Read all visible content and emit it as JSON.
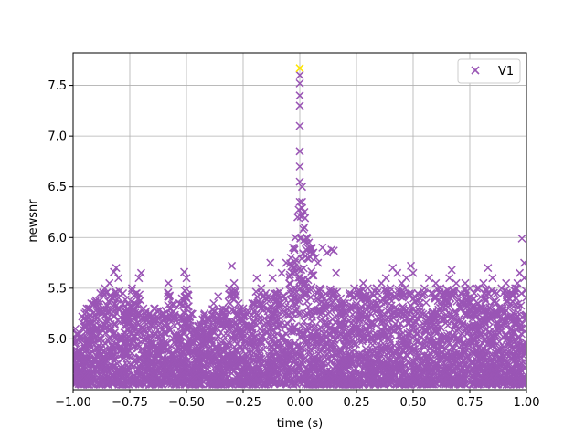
{
  "chart_data": {
    "type": "scatter",
    "title": "",
    "xlabel": "time (s)",
    "ylabel": "newsnr",
    "xlim": [
      -1.0,
      1.0
    ],
    "ylim": [
      4.5,
      7.82
    ],
    "grid": true,
    "legend_position": "top-right",
    "x_ticks": [
      "−1.00",
      "−0.75",
      "−0.50",
      "−0.25",
      "0.00",
      "0.25",
      "0.50",
      "0.75",
      "1.00"
    ],
    "x_tick_values": [
      -1.0,
      -0.75,
      -0.5,
      -0.25,
      0.0,
      0.25,
      0.5,
      0.75,
      1.0
    ],
    "y_ticks": [
      "5.0",
      "5.5",
      "6.0",
      "6.5",
      "7.0",
      "7.5"
    ],
    "y_tick_values": [
      5.0,
      5.5,
      6.0,
      6.5,
      7.0,
      7.5
    ],
    "series": [
      {
        "name": "V1",
        "marker": "x",
        "color": "#9a55b5",
        "points": [
          [
            -0.99,
            5.1
          ],
          [
            -0.96,
            5.22
          ],
          [
            -0.94,
            5.3
          ],
          [
            -0.92,
            5.35
          ],
          [
            -0.9,
            5.38
          ],
          [
            -0.88,
            5.45
          ],
          [
            -0.86,
            5.5
          ],
          [
            -0.84,
            5.55
          ],
          [
            -0.82,
            5.66
          ],
          [
            -0.81,
            5.7
          ],
          [
            -0.8,
            5.6
          ],
          [
            -0.78,
            5.45
          ],
          [
            -0.76,
            5.35
          ],
          [
            -0.74,
            5.5
          ],
          [
            -0.72,
            5.45
          ],
          [
            -0.71,
            5.6
          ],
          [
            -0.7,
            5.65
          ],
          [
            -0.69,
            5.3
          ],
          [
            -0.66,
            5.25
          ],
          [
            -0.64,
            5.3
          ],
          [
            -0.62,
            5.28
          ],
          [
            -0.6,
            5.25
          ],
          [
            -0.58,
            5.55
          ],
          [
            -0.56,
            5.35
          ],
          [
            -0.54,
            5.2
          ],
          [
            -0.52,
            5.4
          ],
          [
            -0.51,
            5.66
          ],
          [
            -0.5,
            5.6
          ],
          [
            -0.48,
            5.25
          ],
          [
            -0.46,
            5.1
          ],
          [
            -0.44,
            5.15
          ],
          [
            -0.42,
            5.25
          ],
          [
            -0.4,
            5.2
          ],
          [
            -0.38,
            5.35
          ],
          [
            -0.36,
            5.42
          ],
          [
            -0.34,
            5.3
          ],
          [
            -0.3,
            5.72
          ],
          [
            -0.29,
            5.55
          ],
          [
            -0.27,
            5.35
          ],
          [
            -0.25,
            5.3
          ],
          [
            -0.23,
            5.28
          ],
          [
            -0.21,
            5.35
          ],
          [
            -0.19,
            5.6
          ],
          [
            -0.17,
            5.5
          ],
          [
            -0.15,
            5.45
          ],
          [
            -0.13,
            5.75
          ],
          [
            -0.12,
            5.6
          ],
          [
            -0.1,
            5.45
          ],
          [
            -0.08,
            5.65
          ],
          [
            -0.06,
            5.75
          ],
          [
            -0.04,
            5.8
          ],
          [
            -0.03,
            5.9
          ],
          [
            -0.02,
            6.0
          ],
          [
            -0.01,
            6.2
          ],
          [
            0.0,
            6.35
          ],
          [
            0.0,
            6.55
          ],
          [
            0.0,
            6.7
          ],
          [
            0.0,
            6.85
          ],
          [
            0.0,
            7.1
          ],
          [
            0.0,
            7.3
          ],
          [
            0.0,
            7.4
          ],
          [
            0.0,
            7.52
          ],
          [
            0.0,
            7.6
          ],
          [
            0.01,
            6.5
          ],
          [
            0.01,
            6.35
          ],
          [
            0.02,
            6.25
          ],
          [
            0.02,
            6.1
          ],
          [
            0.03,
            6.0
          ],
          [
            0.04,
            5.95
          ],
          [
            0.05,
            5.9
          ],
          [
            0.06,
            5.85
          ],
          [
            0.07,
            5.8
          ],
          [
            0.08,
            5.75
          ],
          [
            0.1,
            5.9
          ],
          [
            0.12,
            5.85
          ],
          [
            0.14,
            5.88
          ],
          [
            0.15,
            5.87
          ],
          [
            0.16,
            5.65
          ],
          [
            0.18,
            5.4
          ],
          [
            0.2,
            5.35
          ],
          [
            0.22,
            5.45
          ],
          [
            0.24,
            5.5
          ],
          [
            0.26,
            5.48
          ],
          [
            0.28,
            5.55
          ],
          [
            0.3,
            5.5
          ],
          [
            0.32,
            5.45
          ],
          [
            0.34,
            5.5
          ],
          [
            0.36,
            5.55
          ],
          [
            0.38,
            5.6
          ],
          [
            0.4,
            5.5
          ],
          [
            0.41,
            5.7
          ],
          [
            0.43,
            5.65
          ],
          [
            0.45,
            5.55
          ],
          [
            0.47,
            5.6
          ],
          [
            0.49,
            5.72
          ],
          [
            0.5,
            5.65
          ],
          [
            0.52,
            5.45
          ],
          [
            0.55,
            5.5
          ],
          [
            0.57,
            5.6
          ],
          [
            0.58,
            5.45
          ],
          [
            0.6,
            5.55
          ],
          [
            0.62,
            5.5
          ],
          [
            0.64,
            5.45
          ],
          [
            0.66,
            5.6
          ],
          [
            0.67,
            5.68
          ],
          [
            0.69,
            5.55
          ],
          [
            0.71,
            5.45
          ],
          [
            0.73,
            5.55
          ],
          [
            0.75,
            5.5
          ],
          [
            0.77,
            5.45
          ],
          [
            0.79,
            5.5
          ],
          [
            0.81,
            5.55
          ],
          [
            0.83,
            5.7
          ],
          [
            0.85,
            5.6
          ],
          [
            0.87,
            5.45
          ],
          [
            0.89,
            5.5
          ],
          [
            0.91,
            5.55
          ],
          [
            0.93,
            5.45
          ],
          [
            0.95,
            5.5
          ],
          [
            0.96,
            5.55
          ],
          [
            0.97,
            5.65
          ],
          [
            0.98,
            5.99
          ],
          [
            0.99,
            5.75
          ],
          [
            0.99,
            5.6
          ]
        ],
        "band_samples": 4200,
        "band_floor": 4.55
      },
      {
        "name": "",
        "marker": "x",
        "color": "#ffe600",
        "points": [
          [
            0.0,
            7.67
          ]
        ]
      }
    ]
  }
}
